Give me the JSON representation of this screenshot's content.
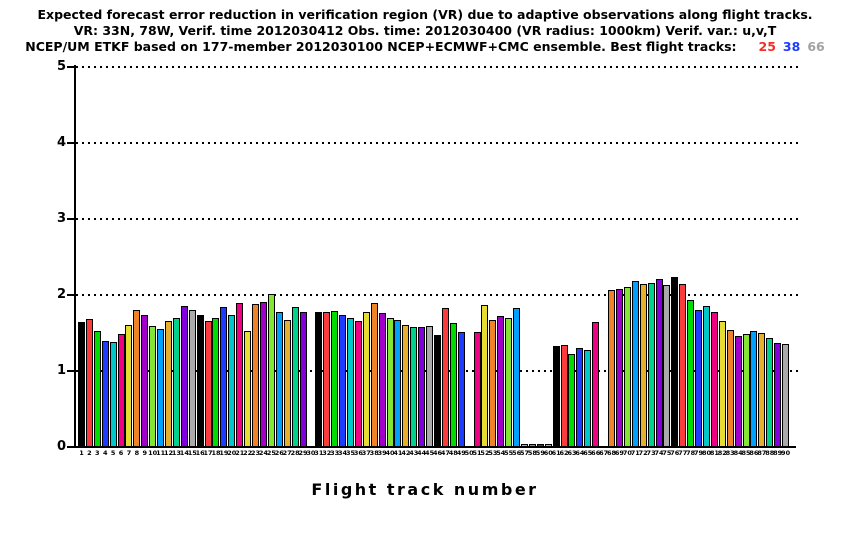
{
  "title": {
    "line1": "Expected forecast error reduction in verification region (VR) due to adaptive observations along flight tracks.",
    "line2": "VR: 33N, 78W, Verif. time 2012030412 Obs. time: 2012030400 (VR radius: 1000km)  Verif. var.: u,v,T",
    "line3_prefix": "NCEP/UM ETKF based on 177-member 2012030100 NCEP+ECMWF+CMC ensemble. Best flight tracks:",
    "best_tracks": [
      {
        "label": "25",
        "color": "#f03028"
      },
      {
        "label": "38",
        "color": "#1e3cff"
      },
      {
        "label": "66",
        "color": "#a2a2a2"
      }
    ]
  },
  "chart_data": {
    "type": "bar",
    "title": "Expected forecast error reduction in verification region (VR) due to adaptive observations along flight tracks.",
    "subtitle1": "VR: 33N, 78W, Verif. time 2012030412 Obs. time: 2012030400 (VR radius: 1000km)  Verif. var.: u,v,T",
    "subtitle2": "NCEP/UM ETKF based on 177-member 2012030100 NCEP+ECMWF+CMC ensemble. Best flight tracks: 25 38 66",
    "xlabel": "Flight track number",
    "ylabel": "",
    "ylim": [
      0,
      5
    ],
    "yticks": [
      0,
      1,
      2,
      3,
      4,
      5
    ],
    "grid": "horizontal-dotted",
    "legend": "none",
    "bar_outline_color": "#000000",
    "palette_cycle_note": "bar n uses palette[(n-1) % 15]",
    "palette": [
      "#000000",
      "#fa3c3c",
      "#00dc00",
      "#1e3cff",
      "#00c8c8",
      "#f00082",
      "#e6dc32",
      "#f08228",
      "#a000c8",
      "#82e632",
      "#00a0ff",
      "#e6af2d",
      "#00d28c",
      "#8200dc",
      "#aaaaaa"
    ],
    "categories": [
      "1",
      "2",
      "3",
      "4",
      "5",
      "6",
      "7",
      "8",
      "9",
      "10",
      "11",
      "12",
      "13",
      "14",
      "15",
      "16",
      "17",
      "18",
      "19",
      "20",
      "21",
      "22",
      "23",
      "24",
      "25",
      "26",
      "27",
      "28",
      "29",
      "30",
      "31",
      "32",
      "33",
      "34",
      "35",
      "36",
      "37",
      "38",
      "39",
      "40",
      "41",
      "42",
      "43",
      "44",
      "45",
      "46",
      "47",
      "48",
      "49",
      "50",
      "51",
      "52",
      "53",
      "54",
      "55",
      "56",
      "57",
      "58",
      "59",
      "60",
      "61",
      "62",
      "63",
      "64",
      "65",
      "66",
      "67",
      "68",
      "69",
      "70",
      "71",
      "72",
      "73",
      "74",
      "75",
      "76",
      "77",
      "78",
      "79",
      "80",
      "81",
      "82",
      "83",
      "84",
      "85",
      "86",
      "87",
      "88",
      "89",
      "90"
    ],
    "values": [
      1.64,
      1.68,
      1.53,
      1.4,
      1.38,
      1.49,
      1.6,
      1.8,
      1.74,
      1.59,
      1.55,
      1.66,
      1.7,
      1.85,
      1.8,
      1.74,
      1.66,
      1.7,
      1.84,
      1.74,
      1.89,
      1.52,
      1.88,
      1.91,
      2.01,
      1.78,
      1.67,
      1.84,
      1.78,
      null,
      1.77,
      1.77,
      1.79,
      1.74,
      1.7,
      1.66,
      1.77,
      1.9,
      1.76,
      1.7,
      1.67,
      1.61,
      1.58,
      1.58,
      1.59,
      1.47,
      1.83,
      1.63,
      1.51,
      null,
      1.51,
      1.87,
      1.67,
      1.73,
      1.7,
      1.83,
      0.04,
      0.04,
      0.04,
      0.04,
      1.33,
      1.34,
      1.23,
      1.3,
      1.27,
      1.65,
      null,
      2.06,
      2.08,
      2.11,
      2.18,
      2.14,
      2.16,
      2.21,
      2.13,
      2.24,
      2.14,
      1.93,
      1.8,
      1.85,
      1.78,
      1.66,
      1.54,
      1.46,
      1.49,
      1.52,
      1.5,
      1.43,
      1.37,
      1.36
    ],
    "missing_tracks": [
      30,
      50,
      67
    ],
    "best_tracks": [
      "25",
      "38",
      "66"
    ]
  }
}
